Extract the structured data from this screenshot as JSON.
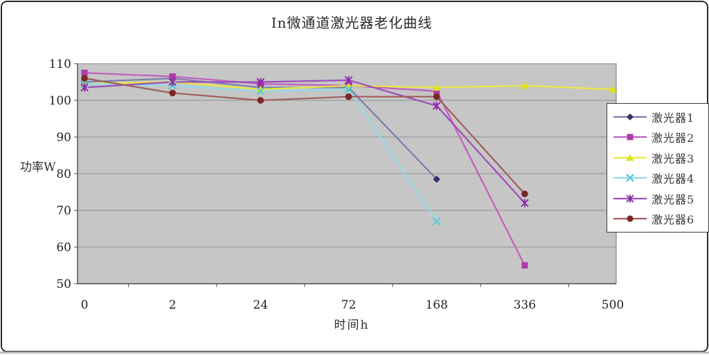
{
  "chart_data": {
    "type": "line",
    "title": "In微通道激光器老化曲线",
    "xlabel": "时间h",
    "ylabel": "功率W",
    "categories": [
      "0",
      "2",
      "24",
      "72",
      "168",
      "336",
      "500"
    ],
    "ylim": [
      50,
      110
    ],
    "yticks": [
      110,
      100,
      90,
      80,
      70,
      60,
      50
    ],
    "grid": "horizontal-only",
    "legend_position": "right",
    "plot_bg_color": "#c6c6c6",
    "grid_color": "#8e8e8e",
    "axis_color": "#4a4a4a",
    "series": [
      {
        "name": "激光器1",
        "marker": "diamond",
        "line_color": "#7c7cac",
        "marker_color": "#343467",
        "values": [
          105,
          106,
          103.5,
          103.5,
          78.5,
          null,
          null
        ]
      },
      {
        "name": "激光器2",
        "marker": "square",
        "line_color": "#c05ec0",
        "marker_color": "#ad3cad",
        "values": [
          107.5,
          106.5,
          104.5,
          104,
          102.5,
          55,
          null
        ]
      },
      {
        "name": "激光器3",
        "marker": "triangle",
        "line_color": "#e9e93c",
        "marker_color": "#e2e21e",
        "values": [
          104.5,
          105,
          103,
          104,
          103.5,
          104,
          103
        ]
      },
      {
        "name": "激光器4",
        "marker": "x",
        "line_color": "#92dcea",
        "marker_color": "#5ec8de",
        "values": [
          104.5,
          104,
          102.5,
          103,
          67,
          null,
          null
        ]
      },
      {
        "name": "激光器5",
        "marker": "asterisk",
        "line_color": "#9e4cba",
        "marker_color": "#8a2aa4",
        "values": [
          103.5,
          105,
          105,
          105.5,
          98.5,
          72,
          null
        ]
      },
      {
        "name": "激光器6",
        "marker": "circle",
        "line_color": "#a25c5c",
        "marker_color": "#7c2828",
        "values": [
          106,
          102,
          100,
          101,
          101,
          74.5,
          null
        ]
      }
    ]
  }
}
